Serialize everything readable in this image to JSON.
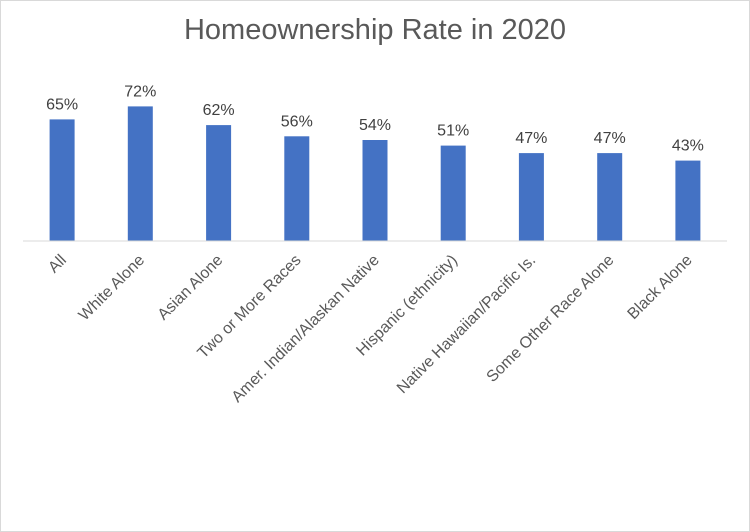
{
  "chart_data": {
    "type": "bar",
    "title": "Homeownership Rate in 2020",
    "categories": [
      "All",
      "White Alone",
      "Asian Alone",
      "Two or More Races",
      "Amer. Indian/Alaskan Native",
      "Hispanic (ethnicity)",
      "Native Hawaiian/Pacific Is.",
      "Some Other Race Alone",
      "Black Alone"
    ],
    "values": [
      65,
      72,
      62,
      56,
      54,
      51,
      47,
      47,
      43
    ],
    "data_labels": [
      "65%",
      "72%",
      "62%",
      "56%",
      "54%",
      "51%",
      "47%",
      "47%",
      "43%"
    ],
    "value_unit": "%",
    "xlabel": "",
    "ylabel": "",
    "grid": false,
    "legend": "none",
    "bar_color": "#4472c4"
  }
}
